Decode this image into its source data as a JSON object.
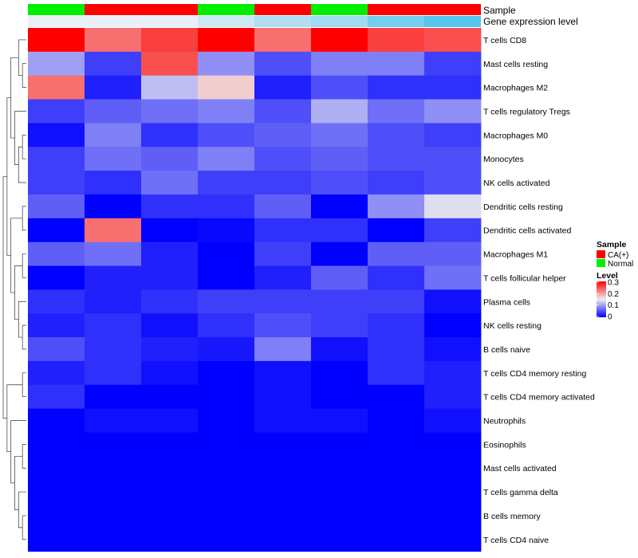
{
  "chart_data": {
    "type": "heatmap",
    "title": "",
    "annotation_tracks": [
      {
        "name": "Sample",
        "values": [
          "Normal",
          "CA(+)",
          "CA(+)",
          "Normal",
          "CA(+)",
          "Normal",
          "CA(+)",
          "CA(+)"
        ]
      },
      {
        "name": "Gene expression level",
        "values": [
          0.1,
          0.1,
          0.1,
          0.08,
          0.06,
          0.05,
          0.02,
          0.0
        ]
      }
    ],
    "rows": [
      "T cells CD8",
      "Mast cells resting",
      "Macrophages M2",
      "T cells regulatory  Tregs",
      "Macrophages M0",
      "Monocytes",
      "NK cells activated",
      "Dendritic cells resting",
      "Dendritic cells activated",
      "Macrophages M1",
      "T cells follicular helper",
      "Plasma cells",
      "NK cells resting",
      "B cells naive",
      "T cells CD4 memory resting",
      "T cells CD4 memory activated",
      "Neutrophils",
      "Eosinophils",
      "Mast cells activated",
      "T cells gamma delta",
      "B cells memory",
      "T cells CD4 naive"
    ],
    "values": [
      [
        0.3,
        0.23,
        0.26,
        0.3,
        0.23,
        0.3,
        0.26,
        0.25
      ],
      [
        0.1,
        0.04,
        0.25,
        0.09,
        0.05,
        0.08,
        0.08,
        0.04
      ],
      [
        0.23,
        0.02,
        0.12,
        0.17,
        0.02,
        0.05,
        0.03,
        0.03
      ],
      [
        0.04,
        0.06,
        0.07,
        0.08,
        0.05,
        0.11,
        0.07,
        0.09
      ],
      [
        0.01,
        0.08,
        0.03,
        0.05,
        0.06,
        0.07,
        0.05,
        0.04
      ],
      [
        0.04,
        0.07,
        0.06,
        0.08,
        0.05,
        0.06,
        0.05,
        0.05
      ],
      [
        0.04,
        0.03,
        0.07,
        0.04,
        0.04,
        0.05,
        0.04,
        0.05
      ],
      [
        0.06,
        0.0,
        0.03,
        0.03,
        0.06,
        0.0,
        0.09,
        0.14
      ],
      [
        0.0,
        0.23,
        0.0,
        0.005,
        0.03,
        0.03,
        0.0,
        0.04
      ],
      [
        0.06,
        0.07,
        0.02,
        0.0,
        0.04,
        0.0,
        0.06,
        0.06
      ],
      [
        0.0,
        0.02,
        0.02,
        0.0,
        0.02,
        0.06,
        0.03,
        0.07
      ],
      [
        0.03,
        0.02,
        0.03,
        0.04,
        0.04,
        0.04,
        0.04,
        0.01
      ],
      [
        0.02,
        0.03,
        0.01,
        0.03,
        0.05,
        0.04,
        0.03,
        0.0
      ],
      [
        0.05,
        0.03,
        0.02,
        0.015,
        0.08,
        0.01,
        0.03,
        0.01
      ],
      [
        0.02,
        0.03,
        0.01,
        0.0,
        0.01,
        0.0,
        0.03,
        0.02
      ],
      [
        0.03,
        0.0,
        0.0,
        0.0,
        0.01,
        0.0,
        0.0,
        0.02
      ],
      [
        0.0,
        0.01,
        0.01,
        0.0,
        0.01,
        0.01,
        0.0,
        0.01
      ],
      [
        0.0,
        0.0,
        0.0,
        0.0,
        0.0,
        0.0,
        0.0,
        0.0
      ],
      [
        0.0,
        0.0,
        0.0,
        0.0,
        0.0,
        0.0,
        0.0,
        0.0
      ],
      [
        0.0,
        0.0,
        0.0,
        0.0,
        0.0,
        0.0,
        0.0,
        0.0
      ],
      [
        0.0,
        0.0,
        0.0,
        0.0,
        0.0,
        0.0,
        0.0,
        0.0
      ],
      [
        0.0,
        0.0,
        0.0,
        0.0,
        0.0,
        0.0,
        0.0,
        0.0
      ]
    ],
    "color_scale": {
      "min": 0,
      "mid": 0.15,
      "max": 0.3,
      "low_color": "#0000ff",
      "mid_color": "#eeeeee",
      "high_color": "#ff0000"
    },
    "legend": {
      "sample_title": "Sample",
      "sample_entries": [
        {
          "label": "CA(+)",
          "color": "#ff0000"
        },
        {
          "label": "Normal",
          "color": "#00ee00"
        }
      ],
      "level_title": "Level",
      "level_ticks": [
        "0.3",
        "0.2",
        "0.1",
        "0"
      ],
      "placement": "right"
    },
    "gene_track_colors": {
      "low": "#eaf0f7",
      "high": "#55c6ee"
    },
    "dendrogram": "rows"
  }
}
